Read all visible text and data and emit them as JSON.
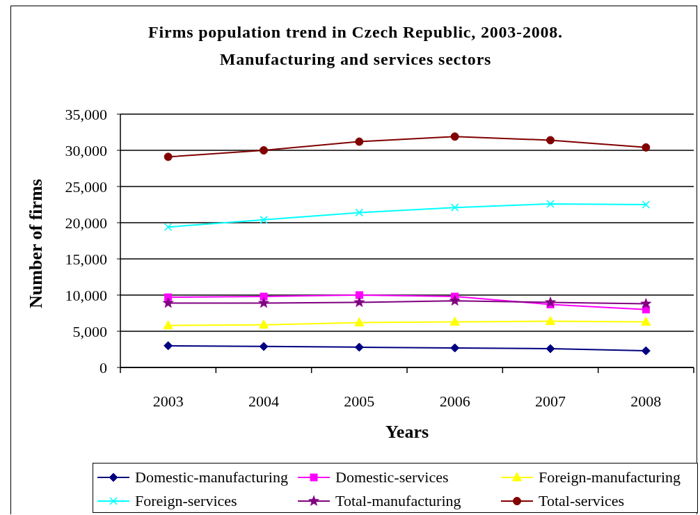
{
  "chart_data": {
    "type": "line",
    "title": "Firms population trend in Czech Republic, 2003-2008.",
    "subtitle": "Manufacturing and services sectors",
    "xlabel": "Years",
    "ylabel": "Number of firms",
    "categories": [
      "2003",
      "2004",
      "2005",
      "2006",
      "2007",
      "2008"
    ],
    "series": [
      {
        "name": "Domestic-manufacturing",
        "color": "#000080",
        "marker": "diamond",
        "values": [
          3000,
          2900,
          2800,
          2700,
          2600,
          2300
        ]
      },
      {
        "name": "Domestic-services",
        "color": "#ff00ff",
        "marker": "square",
        "values": [
          9700,
          9800,
          10000,
          9800,
          8700,
          8000
        ]
      },
      {
        "name": "Foreign-manufacturing",
        "color": "#ffff00",
        "marker": "triangle",
        "values": [
          5800,
          5900,
          6200,
          6300,
          6400,
          6300
        ]
      },
      {
        "name": "Foreign-services",
        "color": "#00ffff",
        "marker": "cross",
        "values": [
          19400,
          20400,
          21400,
          22100,
          22600,
          22500
        ]
      },
      {
        "name": "Total-manufacturing",
        "color": "#800080",
        "marker": "star",
        "values": [
          8900,
          8900,
          9000,
          9200,
          9000,
          8800
        ]
      },
      {
        "name": "Total-services",
        "color": "#800000",
        "marker": "circle",
        "values": [
          29100,
          30000,
          31200,
          31900,
          31400,
          30400
        ]
      }
    ],
    "ylim": [
      0,
      35000
    ],
    "yticks": [
      {
        "value": 0,
        "label": "0"
      },
      {
        "value": 5000,
        "label": "5,000"
      },
      {
        "value": 10000,
        "label": "10,000"
      },
      {
        "value": 15000,
        "label": "15,000"
      },
      {
        "value": 20000,
        "label": "20,000"
      },
      {
        "value": 25000,
        "label": "25,000"
      },
      {
        "value": 30000,
        "label": "30,000"
      },
      {
        "value": 35000,
        "label": "35,000"
      }
    ],
    "grid": "y",
    "legend": "bottom"
  }
}
